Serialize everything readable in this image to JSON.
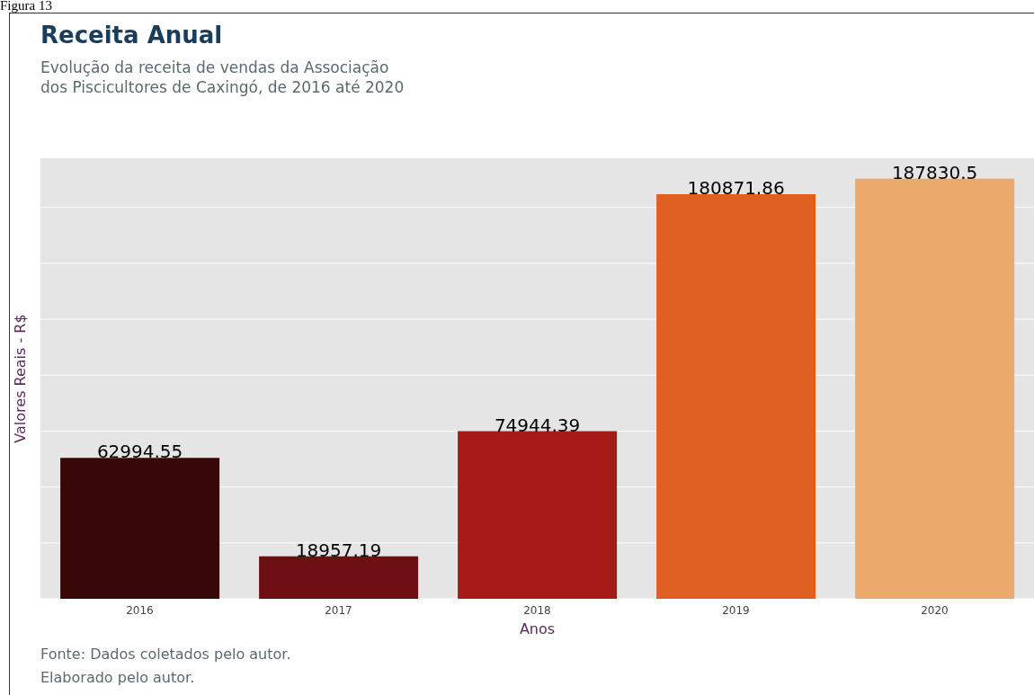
{
  "chart_data": {
    "type": "bar",
    "title": "Receita Anual",
    "subtitle": "Evolução da receita de vendas da Associação\ndos Piscicultores de Caxingó, de 2016 até 2020",
    "categories": [
      "2016",
      "2017",
      "2018",
      "2019",
      "2020"
    ],
    "values": [
      62994.55,
      18957.19,
      74944.39,
      180871.86,
      187830.5
    ],
    "colors": [
      "#380808",
      "#6e1013",
      "#a71a1a",
      "#df5f20",
      "#ebaa6b"
    ],
    "xlabel": "Anos",
    "ylabel": "Valores Reais - R$",
    "ylim": [
      0,
      197000
    ],
    "yticks": [
      {
        "value": 0,
        "label": null
      },
      {
        "value": 25000,
        "label": null
      },
      {
        "value": 50000,
        "label": null
      },
      {
        "value": 75000,
        "label": null
      },
      {
        "value": 100000,
        "label": null
      },
      {
        "value": 125000,
        "label": null
      },
      {
        "value": 150000,
        "label": null
      },
      {
        "value": 175000,
        "label": null
      }
    ],
    "tick_labels": "x",
    "grid": "y",
    "data_labels": true,
    "annotations": [
      "Figura 13",
      "Fonte: Dados coletados pelo autor.",
      "Elaborado pelo autor."
    ]
  }
}
